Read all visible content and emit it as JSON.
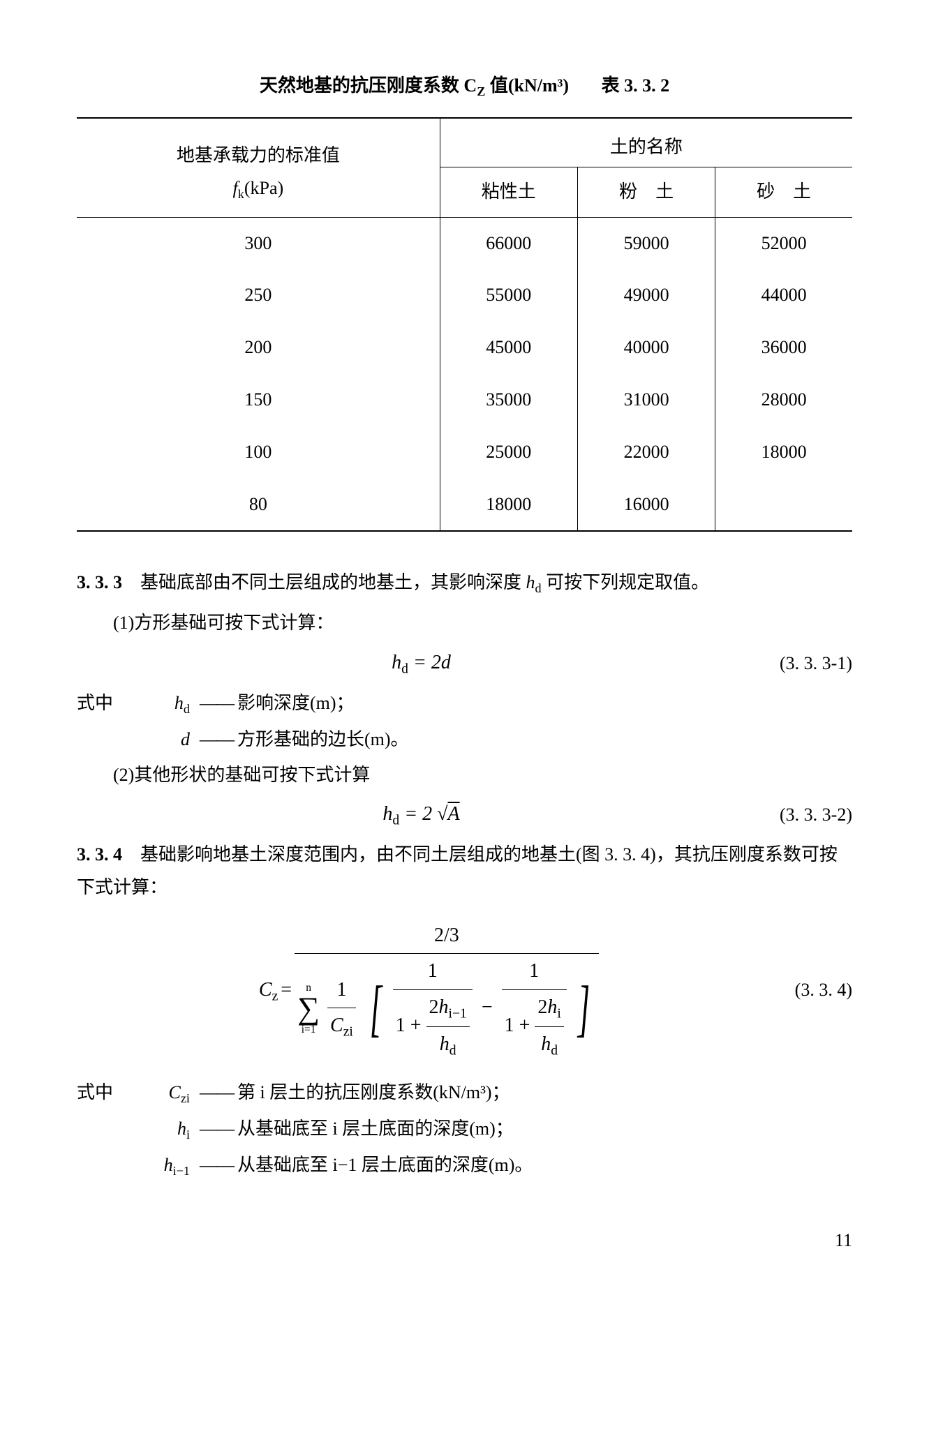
{
  "table": {
    "title_main": "天然地基的抗压刚度系数 C",
    "title_sub": "Z",
    "title_tail": " 值(kN/m³)",
    "title_label": "表 3. 3. 2",
    "header_col1_line1": "地基承载力的标准值",
    "header_col1_line2_sym": "f",
    "header_col1_line2_sub": "k",
    "header_col1_line2_unit": "(kPa)",
    "header_col_group": "土的名称",
    "sub1": "粘性土",
    "sub2": "粉　土",
    "sub3": "砂　土",
    "rows": [
      {
        "fk": "300",
        "c1": "66000",
        "c2": "59000",
        "c3": "52000"
      },
      {
        "fk": "250",
        "c1": "55000",
        "c2": "49000",
        "c3": "44000"
      },
      {
        "fk": "200",
        "c1": "45000",
        "c2": "40000",
        "c3": "36000"
      },
      {
        "fk": "150",
        "c1": "35000",
        "c2": "31000",
        "c3": "28000"
      },
      {
        "fk": "100",
        "c1": "25000",
        "c2": "22000",
        "c3": "18000"
      },
      {
        "fk": "80",
        "c1": "18000",
        "c2": "16000",
        "c3": ""
      }
    ]
  },
  "sec333": {
    "num": "3. 3. 3",
    "text": "　基础底部由不同土层组成的地基土，其影响深度 ",
    "sym": "h",
    "sym_sub": "d",
    "tail": " 可按下列规定取值。"
  },
  "item1": {
    "label": "(1)方形基础可按下式计算：",
    "formula": "h",
    "formula_sub": "d",
    "formula_eq": " = 2d",
    "num": "(3. 3. 3-1)"
  },
  "where_hd": {
    "label": "式中",
    "sym": "h",
    "sub": "d",
    "dash": "——",
    "desc": "影响深度(m)；"
  },
  "where_d": {
    "sym": "d",
    "dash": "——",
    "desc": "方形基础的边长(m)。"
  },
  "item2": {
    "label": "(2)其他形状的基础可按下式计算",
    "formula_lhs": "h",
    "formula_sub": "d",
    "formula_eq": " = 2 ",
    "sqrt": "√",
    "sqrt_arg": "A",
    "num": "(3. 3. 3-2)"
  },
  "sec334": {
    "num": "3. 3. 4",
    "text1": "　基础影响地基土深度范围内，由不同土层组成的地基土(图 3. 3. 4)，其抗压刚度系数可按下式计算："
  },
  "formula334": {
    "lhs_sym": "C",
    "lhs_sub": "z",
    "eq": " = ",
    "top": "2/3",
    "sum_top": "n",
    "sum_bot": "i=1",
    "frac1_top": "1",
    "frac1_bot_sym": "C",
    "frac1_bot_sub": "zi",
    "inner1_top": "1",
    "inner1_bot_pre": "1 + ",
    "inner1_bot_num": "2h",
    "inner1_bot_num_sub": "i−1",
    "inner1_bot_den": "h",
    "inner1_bot_den_sub": "d",
    "minus": " − ",
    "inner2_top": "1",
    "inner2_bot_pre": "1 + ",
    "inner2_bot_num": "2h",
    "inner2_bot_num_sub": "i",
    "inner2_bot_den": "h",
    "inner2_bot_den_sub": "d",
    "num": "(3. 3. 4)"
  },
  "where_czi": {
    "label": "式中",
    "sym": "C",
    "sub": "zi",
    "dash": "——",
    "desc": "第 i 层土的抗压刚度系数(kN/m³)；"
  },
  "where_hi": {
    "sym": "h",
    "sub": "i",
    "dash": "——",
    "desc": "从基础底至 i 层土底面的深度(m)；"
  },
  "where_hi1": {
    "sym": "h",
    "sub": "i−1",
    "dash": "——",
    "desc": "从基础底至 i−1 层土底面的深度(m)。"
  },
  "page": "11"
}
